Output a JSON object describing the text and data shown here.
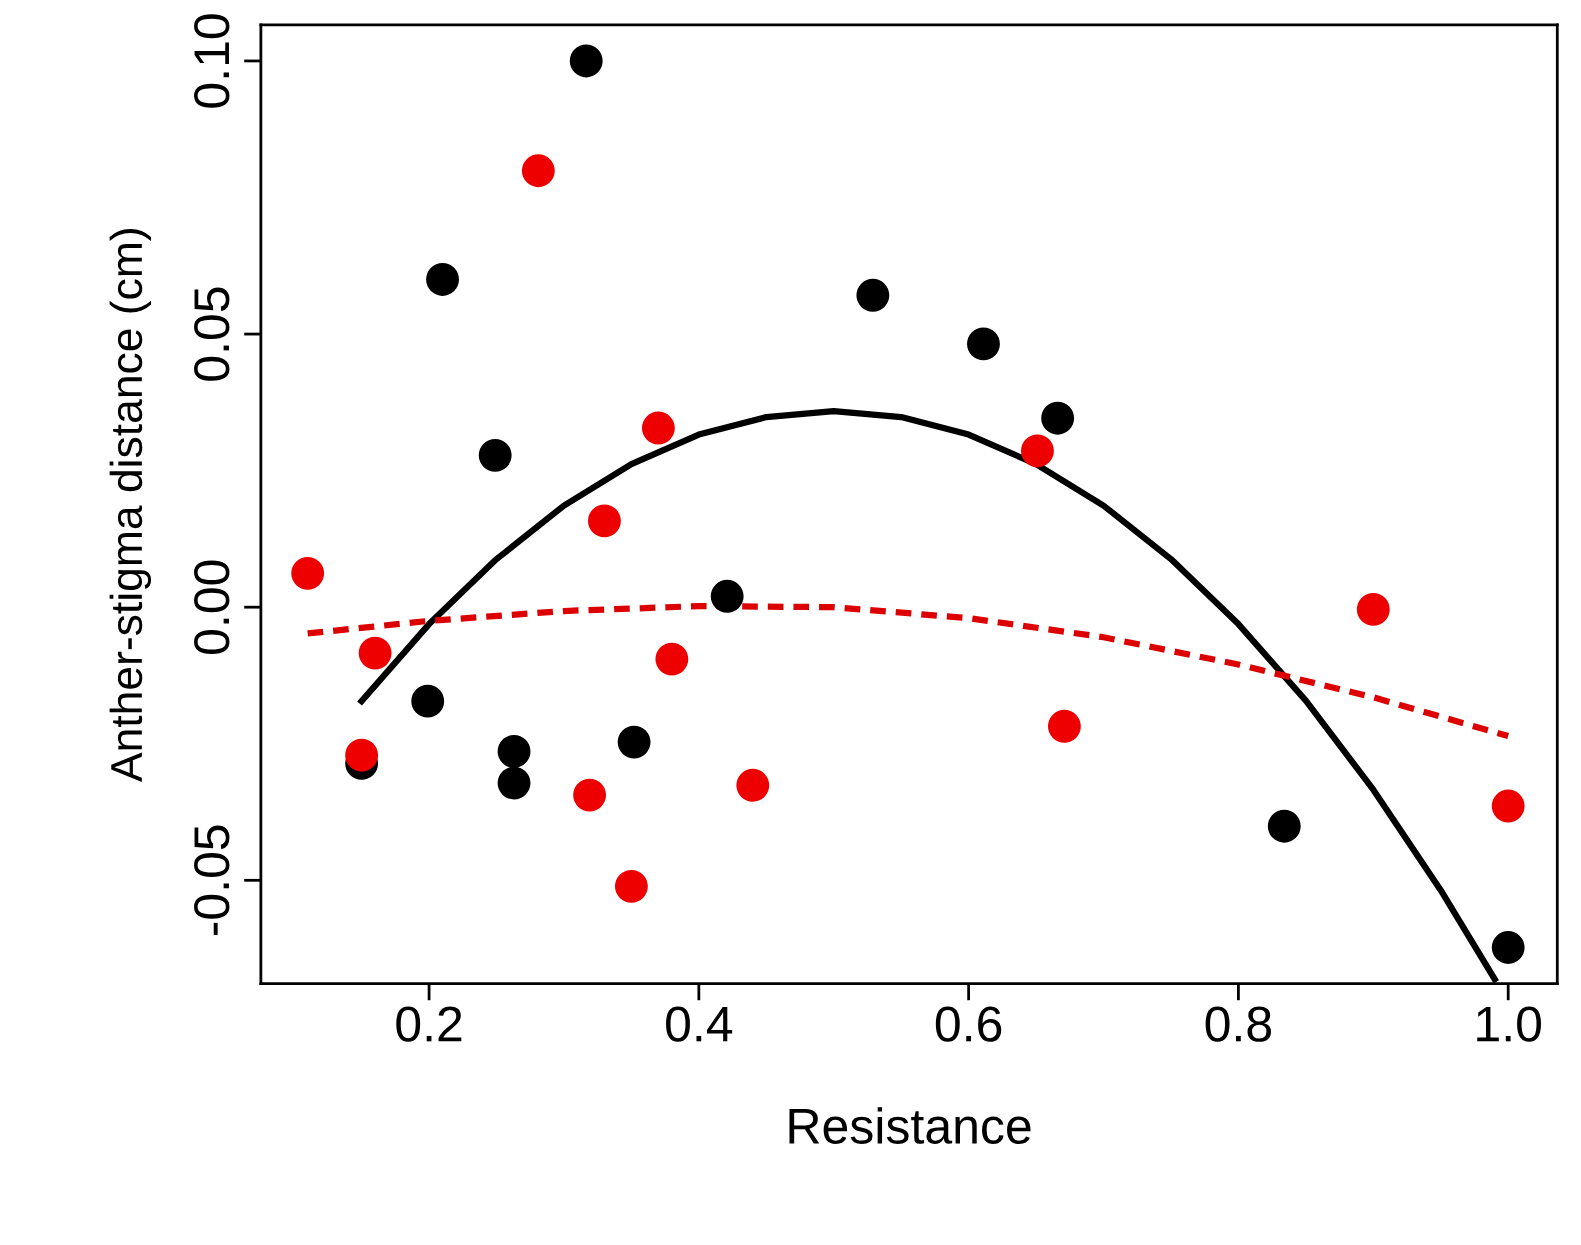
{
  "chart_data": {
    "type": "scatter",
    "xlabel": "Resistance",
    "ylabel": "Anther-stigma distance (cm)",
    "xlim": [
      0.0753,
      1.0364
    ],
    "ylim": [
      -0.0689,
      0.1066
    ],
    "xticks": [
      0.2,
      0.4,
      0.6,
      0.8,
      {
        "value": 1.0,
        "label": "1.0"
      }
    ],
    "yticks": [
      {
        "value": -0.05,
        "label": "-0.05"
      },
      {
        "value": 0.0,
        "label": "0.00"
      },
      {
        "value": 0.05,
        "label": "0.05"
      },
      {
        "value": 0.1,
        "label": "0.10"
      }
    ],
    "grid": false,
    "marker": "circle",
    "series": [
      {
        "color": "#000000",
        "x": [
          0.3165,
          0.21,
          0.249,
          0.529,
          0.611,
          0.666,
          0.421,
          0.199,
          0.15,
          0.263,
          0.263,
          0.352,
          0.834,
          1.0
        ],
        "values": [
          0.1,
          0.06,
          0.0278,
          0.0571,
          0.0482,
          0.0346,
          0.002,
          -0.0172,
          -0.0286,
          -0.0264,
          -0.0322,
          -0.0247,
          -0.0401,
          -0.0623
        ]
      },
      {
        "color": "#ee0000",
        "x": [
          0.11,
          0.281,
          0.37,
          0.33,
          0.651,
          0.16,
          0.15,
          0.38,
          0.319,
          0.35,
          0.44,
          0.671,
          0.9,
          1.0
        ],
        "values": [
          0.0062,
          0.0799,
          0.0328,
          0.0158,
          0.0286,
          -0.0084,
          -0.0271,
          -0.0095,
          -0.0344,
          -0.0511,
          -0.0326,
          -0.0218,
          -0.0004,
          -0.0364
        ]
      },
      {
        "type": "line",
        "color": "#000000",
        "line_style": "solid",
        "marker": "none",
        "x": [
          0.15,
          0.2,
          0.25,
          0.3,
          0.35,
          0.4,
          0.45,
          0.5,
          0.55,
          0.6,
          0.65,
          0.7,
          0.75,
          0.8,
          0.85,
          0.9,
          0.95,
          0.99
        ],
        "values": [
          -0.0172,
          -0.0031,
          0.0088,
          0.0186,
          0.0262,
          0.0316,
          0.0348,
          0.0359,
          0.0348,
          0.0316,
          0.0262,
          0.0186,
          0.0088,
          -0.0031,
          -0.0171,
          -0.0334,
          -0.0518,
          -0.0681
        ]
      },
      {
        "type": "line",
        "color": "#dd0000",
        "line_style": "dashed",
        "marker": "none",
        "x": [
          0.11,
          0.2,
          0.3,
          0.4,
          0.5,
          0.6,
          0.7,
          0.8,
          0.9,
          1.0
        ],
        "values": [
          -0.0048,
          -0.0025,
          -0.0007,
          0.0002,
          0.0,
          -0.002,
          -0.0055,
          -0.0105,
          -0.0165,
          -0.0236
        ]
      }
    ]
  }
}
